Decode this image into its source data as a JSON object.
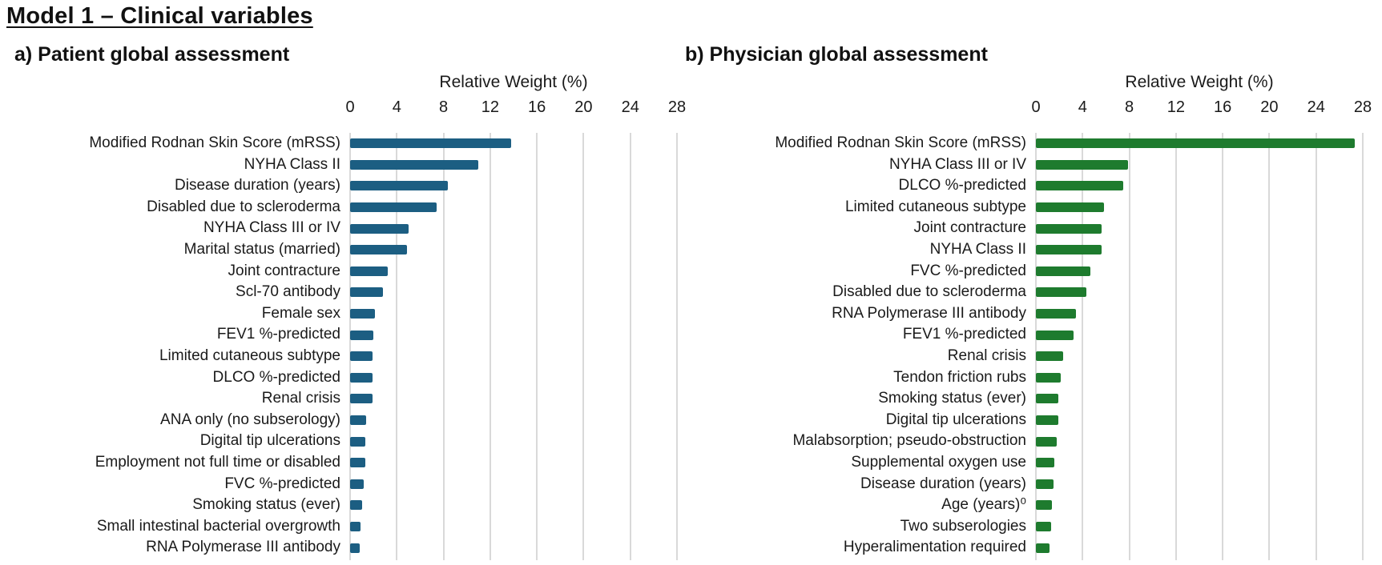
{
  "page_title": "Model 1 – Clinical variables",
  "colors": {
    "patient_bar": "#1c5e82",
    "physician_bar": "#1e7b2e",
    "gridline": "#d9d9d9",
    "text": "#1a1a1a"
  },
  "chart_data": [
    {
      "type": "bar",
      "orientation": "horizontal",
      "panel_label": "a) Patient global assessment",
      "xlabel": "Relative Weight (%)",
      "bar_color": "#1c5e82",
      "xlim": [
        0,
        28
      ],
      "xticks": [
        0,
        4,
        8,
        12,
        16,
        20,
        24,
        28
      ],
      "grid": true,
      "tick_side": "top",
      "categories": [
        "Modified Rodnan Skin Score (mRSS)",
        "NYHA Class II",
        "Disease duration (years)",
        "Disabled due to scleroderma",
        "NYHA Class III or IV",
        "Marital status (married)",
        "Joint contracture",
        "Scl-70 antibody",
        "Female sex",
        "FEV1 %-predicted",
        "Limited cutaneous subtype",
        "DLCO %-predicted",
        "Renal crisis",
        "ANA only (no subserology)",
        "Digital tip ulcerations",
        "Employment not full time or disabled",
        "FVC %-predicted",
        "Smoking status (ever)",
        "Small intestinal bacterial overgrowth",
        "RNA Polymerase III antibody"
      ],
      "values": [
        13.8,
        11.0,
        8.4,
        7.4,
        5.0,
        4.9,
        3.2,
        2.8,
        2.1,
        2.0,
        1.9,
        1.9,
        1.9,
        1.4,
        1.3,
        1.3,
        1.2,
        1.0,
        0.9,
        0.8
      ]
    },
    {
      "type": "bar",
      "orientation": "horizontal",
      "panel_label": "b) Physician global assessment",
      "xlabel": "Relative Weight (%)",
      "bar_color": "#1e7b2e",
      "xlim": [
        0,
        28
      ],
      "xticks": [
        0,
        4,
        8,
        12,
        16,
        20,
        24,
        28
      ],
      "grid": true,
      "tick_side": "top",
      "categories": [
        "Modified Rodnan Skin Score (mRSS)",
        "NYHA Class III or IV",
        "DLCO %-predicted",
        "Limited cutaneous subtype",
        "Joint contracture",
        "NYHA Class II",
        "FVC %-predicted",
        "Disabled due to scleroderma",
        "RNA Polymerase III antibody",
        "FEV1 %-predicted",
        "Renal crisis",
        "Tendon friction rubs",
        "Smoking status (ever)",
        "Digital tip ulcerations",
        "Malabsorption; pseudo-obstruction",
        "Supplemental oxygen use",
        "Disease duration (years)",
        "Age (years)⁰",
        "Two subserologies",
        "Hyperalimentation required"
      ],
      "values": [
        27.3,
        7.9,
        7.5,
        5.8,
        5.6,
        5.6,
        4.7,
        4.3,
        3.4,
        3.2,
        2.3,
        2.1,
        1.9,
        1.9,
        1.8,
        1.6,
        1.5,
        1.4,
        1.3,
        1.2
      ]
    }
  ]
}
